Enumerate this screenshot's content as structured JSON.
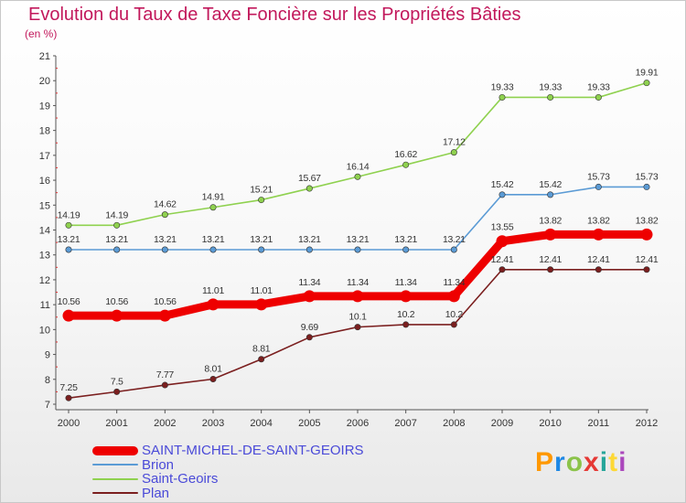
{
  "title": "Evolution du Taux de Taxe Foncière sur les Propriétés Bâties",
  "subtitle": "(en %)",
  "logo": {
    "text": "Proxiti",
    "colors": [
      "#ff9800",
      "#1e88e5",
      "#8bc34a",
      "#e53935",
      "#26a69a",
      "#fdd835",
      "#ab47bc"
    ]
  },
  "chart_data": {
    "type": "line",
    "title": "Evolution du Taux de Taxe Foncière sur les Propriétés Bâties",
    "ylabel": "(en %)",
    "xlabel": "",
    "x": [
      "2000",
      "2001",
      "2002",
      "2003",
      "2004",
      "2005",
      "2006",
      "2007",
      "2008",
      "2009",
      "2010",
      "2011",
      "2012"
    ],
    "ylim": [
      7,
      21
    ],
    "yticks": [
      "7",
      "8",
      "9",
      "10",
      "11",
      "12",
      "13",
      "14",
      "15",
      "16",
      "17",
      "18",
      "19",
      "20",
      "21"
    ],
    "grid": false,
    "legend_position": "bottom-left",
    "series": [
      {
        "name": "SAINT-MICHEL-DE-SAINT-GEOIRS",
        "color": "#ee0000",
        "bold": true,
        "values": [
          10.56,
          10.56,
          10.56,
          11.01,
          11.01,
          11.34,
          11.34,
          11.34,
          11.34,
          13.55,
          13.82,
          13.82,
          13.82
        ],
        "labels": [
          "10.56",
          "10.56",
          "10.56",
          "11.01",
          "11.01",
          "11.34",
          "11.34",
          "11.34",
          "11.34",
          "13.55",
          "13.82",
          "13.82",
          "13.82"
        ]
      },
      {
        "name": "Brion",
        "color": "#5b9bd5",
        "bold": false,
        "values": [
          13.21,
          13.21,
          13.21,
          13.21,
          13.21,
          13.21,
          13.21,
          13.21,
          13.21,
          15.42,
          15.42,
          15.73,
          15.73
        ],
        "labels": [
          "13.21",
          "13.21",
          "13.21",
          "13.21",
          "13.21",
          "13.21",
          "13.21",
          "13.21",
          "13.21",
          "15.42",
          "15.42",
          "15.73",
          "15.73"
        ]
      },
      {
        "name": "Saint-Geoirs",
        "color": "#8fd14f",
        "bold": false,
        "values": [
          14.19,
          14.19,
          14.62,
          14.91,
          15.21,
          15.67,
          16.14,
          16.62,
          17.12,
          19.33,
          19.33,
          19.33,
          19.91
        ],
        "labels": [
          "14.19",
          "14.19",
          "14.62",
          "14.91",
          "15.21",
          "15.67",
          "16.14",
          "16.62",
          "17.12",
          "19.33",
          "19.33",
          "19.33",
          "19.91"
        ]
      },
      {
        "name": "Plan",
        "color": "#7b1f1f",
        "bold": false,
        "values": [
          7.25,
          7.5,
          7.77,
          8.01,
          8.81,
          9.69,
          10.1,
          10.2,
          10.2,
          12.41,
          12.41,
          12.41,
          12.41
        ],
        "labels": [
          "7.25",
          "7.5",
          "7.77",
          "8.01",
          "8.81",
          "9.69",
          "10.1",
          "10.2",
          "10.2",
          "12.41",
          "12.41",
          "12.41",
          "12.41"
        ]
      }
    ]
  }
}
